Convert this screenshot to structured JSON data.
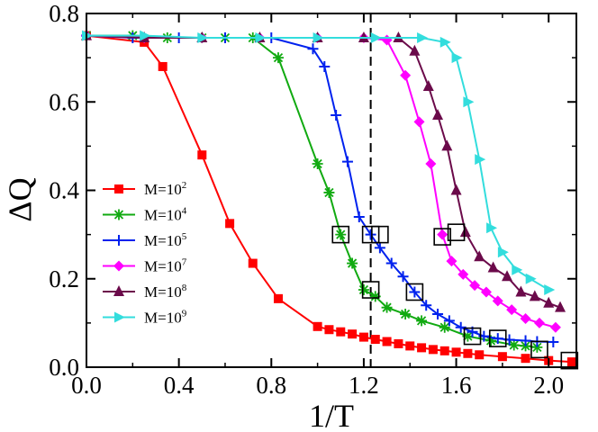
{
  "chart_data": {
    "type": "line",
    "title": "",
    "xlabel": "1/T",
    "ylabel": "ΔQ",
    "xlim": [
      0.0,
      2.12
    ],
    "ylim": [
      0.0,
      0.8
    ],
    "xticks": [
      0.0,
      0.4,
      0.8,
      1.2,
      1.6,
      2.0
    ],
    "xtick_labels": [
      "0.0",
      "0.4",
      "0.8",
      "1.2",
      "1.6",
      "2.0"
    ],
    "yticks": [
      0.0,
      0.2,
      0.4,
      0.6,
      0.8
    ],
    "ytick_labels": [
      "0.0",
      "0.2",
      "0.4",
      "0.6",
      "0.8"
    ],
    "grid": false,
    "legend_position": "bottom-left",
    "vertical_line": {
      "x": 1.23,
      "style": "dashed"
    },
    "series": [
      {
        "name": "M=10^2",
        "label_base": "M=10",
        "label_exp": "2",
        "color": "#ff0000",
        "marker": "square",
        "x": [
          0.0,
          0.25,
          0.33,
          0.5,
          0.62,
          0.72,
          0.83,
          1.0,
          1.05,
          1.1,
          1.15,
          1.2,
          1.25,
          1.3,
          1.35,
          1.4,
          1.45,
          1.5,
          1.55,
          1.6,
          1.65,
          1.7,
          1.8,
          1.9,
          2.0,
          2.1
        ],
        "values": [
          0.75,
          0.735,
          0.68,
          0.48,
          0.325,
          0.235,
          0.155,
          0.092,
          0.085,
          0.08,
          0.075,
          0.068,
          0.063,
          0.058,
          0.053,
          0.048,
          0.044,
          0.04,
          0.037,
          0.034,
          0.031,
          0.028,
          0.024,
          0.02,
          0.015,
          0.012
        ]
      },
      {
        "name": "M=10^4",
        "label_base": "M=10",
        "label_exp": "4",
        "color": "#11aa11",
        "marker": "asterisk",
        "x": [
          0.0,
          0.2,
          0.35,
          0.5,
          0.6,
          0.72,
          0.83,
          1.0,
          1.05,
          1.1,
          1.15,
          1.2,
          1.25,
          1.3,
          1.38,
          1.45,
          1.55,
          1.65,
          1.75,
          1.85,
          1.9,
          1.95
        ],
        "values": [
          0.75,
          0.75,
          0.745,
          0.745,
          0.745,
          0.745,
          0.7,
          0.46,
          0.395,
          0.3,
          0.235,
          0.175,
          0.16,
          0.135,
          0.12,
          0.105,
          0.09,
          0.07,
          0.06,
          0.05,
          0.048,
          0.045
        ]
      },
      {
        "name": "M=10^5",
        "label_base": "M=10",
        "label_exp": "5",
        "color": "#0022ee",
        "marker": "plus",
        "x": [
          0.0,
          0.2,
          0.4,
          0.6,
          0.8,
          0.98,
          1.03,
          1.08,
          1.13,
          1.18,
          1.23,
          1.27,
          1.32,
          1.37,
          1.42,
          1.47,
          1.52,
          1.57,
          1.62,
          1.67,
          1.72,
          1.78,
          1.83,
          1.9,
          1.95,
          2.02
        ],
        "values": [
          0.75,
          0.745,
          0.745,
          0.745,
          0.745,
          0.72,
          0.68,
          0.57,
          0.465,
          0.34,
          0.3,
          0.27,
          0.235,
          0.205,
          0.17,
          0.14,
          0.12,
          0.105,
          0.09,
          0.08,
          0.07,
          0.065,
          0.062,
          0.06,
          0.058,
          0.057
        ]
      },
      {
        "name": "M=10^7",
        "label_base": "M=10",
        "label_exp": "7",
        "color": "#ff00ff",
        "marker": "diamond",
        "x": [
          0.0,
          0.25,
          0.5,
          0.75,
          1.0,
          1.2,
          1.3,
          1.38,
          1.44,
          1.49,
          1.54,
          1.58,
          1.63,
          1.68,
          1.73,
          1.78,
          1.84,
          1.9,
          1.96,
          2.03
        ],
        "values": [
          0.75,
          0.745,
          0.745,
          0.745,
          0.745,
          0.745,
          0.74,
          0.66,
          0.555,
          0.46,
          0.3,
          0.24,
          0.21,
          0.185,
          0.17,
          0.15,
          0.13,
          0.11,
          0.1,
          0.09
        ]
      },
      {
        "name": "M=10^8",
        "label_base": "M=10",
        "label_exp": "8",
        "color": "#6b0a4a",
        "marker": "triangle-up",
        "x": [
          0.0,
          0.25,
          0.5,
          0.75,
          1.0,
          1.2,
          1.35,
          1.42,
          1.48,
          1.52,
          1.56,
          1.6,
          1.64,
          1.7,
          1.76,
          1.82,
          1.88,
          1.94,
          2.0,
          2.05
        ],
        "values": [
          0.75,
          0.745,
          0.745,
          0.745,
          0.745,
          0.745,
          0.745,
          0.715,
          0.635,
          0.57,
          0.5,
          0.4,
          0.305,
          0.25,
          0.225,
          0.205,
          0.17,
          0.16,
          0.145,
          0.135
        ]
      },
      {
        "name": "M=10^9",
        "label_base": "M=10",
        "label_exp": "9",
        "color": "#33dddd",
        "marker": "triangle-right",
        "x": [
          0.0,
          0.25,
          0.5,
          0.75,
          1.0,
          1.25,
          1.45,
          1.55,
          1.6,
          1.65,
          1.7,
          1.75,
          1.8,
          1.86,
          1.92,
          2.0
        ],
        "values": [
          0.75,
          0.75,
          0.745,
          0.745,
          0.745,
          0.745,
          0.745,
          0.735,
          0.7,
          0.6,
          0.47,
          0.315,
          0.26,
          0.22,
          0.2,
          0.175
        ]
      }
    ],
    "annotations": {
      "description": "open square boxes highlighting selected points",
      "points": [
        {
          "x": 1.1,
          "y": 0.3
        },
        {
          "x": 1.23,
          "y": 0.3
        },
        {
          "x": 1.27,
          "y": 0.3
        },
        {
          "x": 1.54,
          "y": 0.295
        },
        {
          "x": 1.6,
          "y": 0.305
        },
        {
          "x": 1.23,
          "y": 0.175
        },
        {
          "x": 1.42,
          "y": 0.17
        },
        {
          "x": 1.67,
          "y": 0.07
        },
        {
          "x": 1.78,
          "y": 0.065
        },
        {
          "x": 1.96,
          "y": 0.04
        },
        {
          "x": 2.09,
          "y": 0.015
        }
      ]
    }
  }
}
